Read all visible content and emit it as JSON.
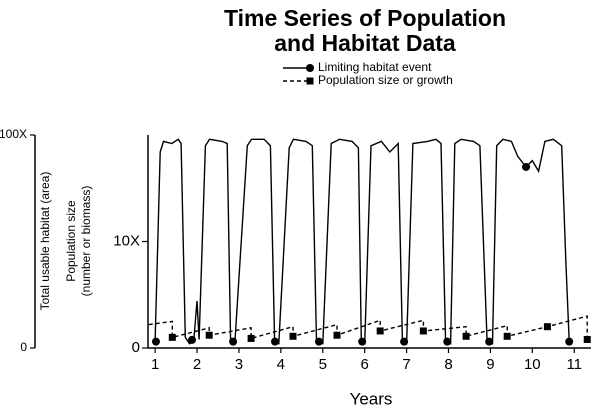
{
  "chart_data": {
    "type": "line",
    "title_lines": [
      "Time Series of Population",
      "and Habitat Data"
    ],
    "xlabel": "Years",
    "ylabel": "Total usable habitat (area)",
    "y2label_lines": [
      "Population size",
      "(number or biomass)"
    ],
    "xlim": [
      0.83,
      11.4
    ],
    "xticks": [
      1,
      2,
      3,
      4,
      5,
      6,
      7,
      8,
      9,
      10,
      11
    ],
    "ylim": [
      0,
      100
    ],
    "yticks": [
      0,
      {
        "value": 100,
        "label": "100X"
      }
    ],
    "y2lim": [
      0,
      20
    ],
    "y2ticks": [
      0,
      {
        "value": 10,
        "label": "10X"
      }
    ],
    "series": [
      {
        "name": "Limiting habitat event",
        "color": "#000000",
        "dash": false,
        "marker": "circle",
        "axis": "y",
        "x": [
          1.0,
          1.12,
          1.2,
          1.4,
          1.55,
          1.62,
          1.72,
          1.82,
          1.92,
          2.0,
          2.05,
          2.2,
          2.3,
          2.6,
          2.72,
          2.8,
          2.9,
          3.2,
          3.3,
          3.6,
          3.75,
          3.85,
          3.95,
          4.2,
          4.3,
          4.6,
          4.75,
          4.85,
          5.0,
          5.2,
          5.4,
          5.7,
          5.85,
          5.92,
          6.0,
          6.15,
          6.4,
          6.6,
          6.8,
          6.9,
          7.0,
          7.15,
          7.5,
          7.7,
          7.82,
          7.93,
          8.05,
          8.15,
          8.3,
          8.6,
          8.75,
          8.92,
          9.05,
          9.15,
          9.3,
          9.5,
          9.65,
          9.85,
          10.0,
          10.15,
          10.3,
          10.5,
          10.7,
          10.8,
          10.88
        ],
        "values": [
          3,
          92,
          97,
          96,
          98,
          96,
          5,
          2,
          3,
          22,
          4,
          95,
          98,
          97,
          96,
          3,
          2,
          95,
          98,
          98,
          95,
          3,
          2,
          94,
          98,
          97,
          95,
          3,
          2,
          96,
          98,
          97,
          94,
          3,
          2,
          95,
          97,
          92,
          96,
          3,
          2,
          96,
          97,
          98,
          96,
          3,
          2,
          96,
          98,
          97,
          95,
          3,
          2,
          95,
          98,
          97,
          90,
          85,
          88,
          83,
          97,
          98,
          95,
          40,
          3
        ],
        "markers": {
          "x": [
            1.02,
            1.88,
            2.86,
            3.86,
            4.91,
            5.94,
            6.94,
            7.97,
            8.97,
            9.85,
            10.88
          ],
          "values": [
            3,
            3.8,
            3,
            3,
            3,
            3,
            3,
            3,
            3,
            85,
            3
          ]
        }
      },
      {
        "name": "Population size or growth",
        "color": "#000000",
        "dash": true,
        "marker": "square",
        "axis": "y2",
        "x": [
          0.85,
          1.41,
          1.41,
          2.29,
          2.29,
          3.29,
          3.29,
          4.29,
          4.29,
          5.34,
          5.34,
          6.37,
          6.37,
          7.4,
          7.4,
          8.42,
          8.42,
          9.4,
          9.4,
          10.36,
          11.31,
          11.31
        ],
        "values": [
          2.2,
          2.5,
          1.0,
          1.9,
          1.2,
          1.9,
          0.9,
          2.0,
          1.1,
          2.2,
          1.2,
          2.6,
          1.6,
          2.6,
          1.6,
          2.0,
          1.1,
          2.1,
          1.1,
          2.0,
          3.0,
          0.8
        ],
        "markers": {
          "x": [
            1.41,
            2.29,
            3.29,
            4.29,
            5.34,
            6.37,
            7.4,
            8.42,
            9.4,
            10.36,
            11.31
          ],
          "values": [
            1.0,
            1.2,
            0.9,
            1.1,
            1.2,
            1.6,
            1.6,
            1.1,
            1.1,
            2.0,
            0.8
          ]
        }
      }
    ]
  }
}
